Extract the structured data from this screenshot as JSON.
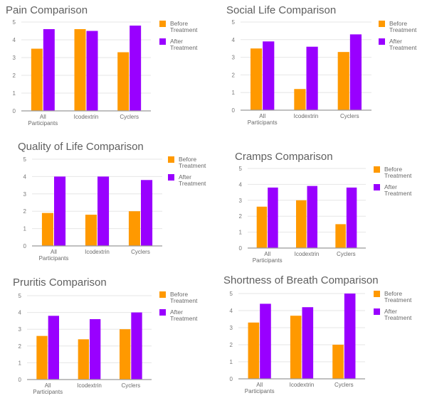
{
  "chart_data": [
    {
      "type": "bar",
      "title": "Pain Comparison",
      "categories": [
        "All Participants",
        "Icodextrin",
        "Cyclers"
      ],
      "series": [
        {
          "name": "Before Treatment",
          "color": "#ff9900",
          "values": [
            3.5,
            4.6,
            3.3
          ]
        },
        {
          "name": "After Treatment",
          "color": "#9900ff",
          "values": [
            4.6,
            4.5,
            4.8
          ]
        }
      ],
      "xlabel": "",
      "ylabel": "",
      "ylim": [
        0,
        5
      ],
      "yticks": [
        "0",
        "1",
        "2",
        "3",
        "4",
        "5"
      ],
      "grid": true,
      "legend": "right"
    },
    {
      "type": "bar",
      "title": "Social Life Comparison",
      "categories": [
        "All Participants",
        "Icodextrin",
        "Cyclers"
      ],
      "series": [
        {
          "name": "Before Treatment",
          "color": "#ff9900",
          "values": [
            3.5,
            1.2,
            3.3
          ]
        },
        {
          "name": "After Treatment",
          "color": "#9900ff",
          "values": [
            3.9,
            3.6,
            4.3
          ]
        }
      ],
      "xlabel": "",
      "ylabel": "",
      "ylim": [
        0,
        5
      ],
      "yticks": [
        "0",
        "1",
        "2",
        "3",
        "4",
        "5"
      ],
      "grid": true,
      "legend": "right"
    },
    {
      "type": "bar",
      "title": "Quality of Life Comparison",
      "categories": [
        "All Participants",
        "Icodextrin",
        "Cyclers"
      ],
      "series": [
        {
          "name": "Before Treatment",
          "color": "#ff9900",
          "values": [
            1.9,
            1.8,
            2.0
          ]
        },
        {
          "name": "After Treatment",
          "color": "#9900ff",
          "values": [
            4.0,
            4.0,
            3.8
          ]
        }
      ],
      "xlabel": "",
      "ylabel": "",
      "ylim": [
        0,
        5
      ],
      "yticks": [
        "0",
        "1",
        "2",
        "3",
        "4",
        "5"
      ],
      "grid": true,
      "legend": "right"
    },
    {
      "type": "bar",
      "title": "Cramps Comparison",
      "categories": [
        "All Participants",
        "Icodextrin",
        "Cyclers"
      ],
      "series": [
        {
          "name": "Before Treatment",
          "color": "#ff9900",
          "values": [
            2.6,
            3.0,
            1.5
          ]
        },
        {
          "name": "After Treatment",
          "color": "#9900ff",
          "values": [
            3.8,
            3.9,
            3.8
          ]
        }
      ],
      "xlabel": "",
      "ylabel": "",
      "ylim": [
        0,
        5
      ],
      "yticks": [
        "0",
        "1",
        "2",
        "3",
        "4",
        "5"
      ],
      "grid": true,
      "legend": "right"
    },
    {
      "type": "bar",
      "title": "Pruritis Comparison",
      "categories": [
        "All Participants",
        "Icodextrin",
        "Cyclers"
      ],
      "series": [
        {
          "name": "Before Treatment",
          "color": "#ff9900",
          "values": [
            2.6,
            2.4,
            3.0
          ]
        },
        {
          "name": "After Treatment",
          "color": "#9900ff",
          "values": [
            3.8,
            3.6,
            4.0
          ]
        }
      ],
      "xlabel": "",
      "ylabel": "",
      "ylim": [
        0,
        5
      ],
      "yticks": [
        "0",
        "1",
        "2",
        "3",
        "4",
        "5"
      ],
      "grid": true,
      "legend": "right"
    },
    {
      "type": "bar",
      "title": "Shortness of Breath Comparison",
      "categories": [
        "All Participants",
        "Icodextrin",
        "Cyclers"
      ],
      "series": [
        {
          "name": "Before Treatment",
          "color": "#ff9900",
          "values": [
            3.3,
            3.7,
            2.0
          ]
        },
        {
          "name": "After Treatment",
          "color": "#9900ff",
          "values": [
            4.4,
            4.2,
            5.0
          ]
        }
      ],
      "xlabel": "",
      "ylabel": "",
      "ylim": [
        0,
        5
      ],
      "yticks": [
        "0",
        "1",
        "2",
        "3",
        "4",
        "5"
      ],
      "grid": true,
      "legend": "right"
    }
  ]
}
